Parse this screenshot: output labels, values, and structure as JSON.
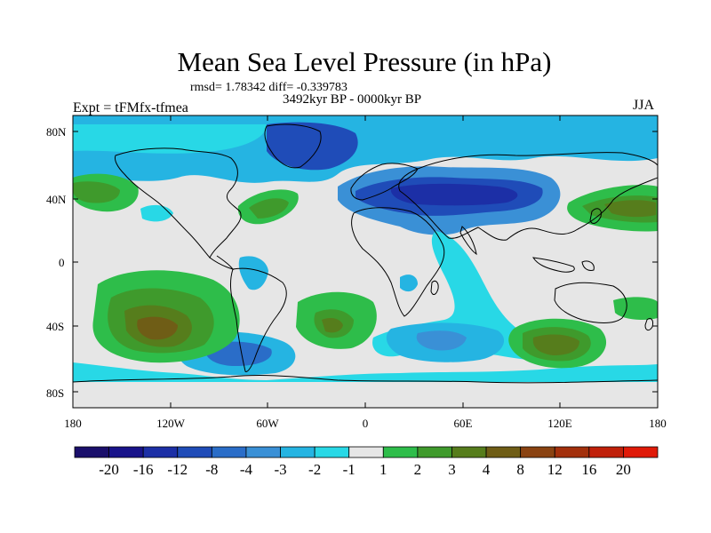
{
  "title": "Mean Sea Level Pressure (in hPa)",
  "stats": "rmsd= 1.78342 diff= -0.339783",
  "period": "3492kyr BP - 0000kyr BP",
  "experiment": "Expt = tFMfx-tfmea",
  "season": "JJA",
  "axes": {
    "lat_labels": [
      "80N",
      "40N",
      "0",
      "40S",
      "80S"
    ],
    "lon_labels": [
      "180",
      "120W",
      "60W",
      "0",
      "60E",
      "120E",
      "180"
    ]
  },
  "colorbar": {
    "colors": [
      "#1a0f6b",
      "#18138a",
      "#1c2fa6",
      "#1f4cb8",
      "#2a6dc8",
      "#3a90d6",
      "#25b4e2",
      "#28d8e6",
      "#e6e6e6",
      "#2ebd4a",
      "#3f9a2c",
      "#567d1c",
      "#6f5d16",
      "#8a4312",
      "#a3300c",
      "#c0200a",
      "#e01a08"
    ],
    "labels": [
      "-20",
      "-16",
      "-12",
      "-8",
      "-4",
      "-3",
      "-2",
      "-1",
      "1",
      "2",
      "3",
      "4",
      "8",
      "12",
      "16",
      "20"
    ]
  }
}
